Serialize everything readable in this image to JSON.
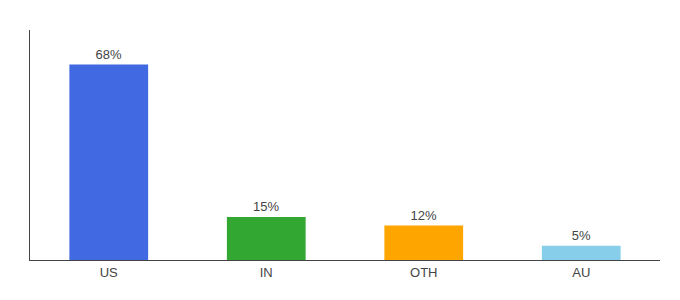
{
  "chart_data": {
    "type": "bar",
    "categories": [
      "US",
      "IN",
      "OTH",
      "AU"
    ],
    "values": [
      68,
      15,
      12,
      5
    ],
    "value_labels": [
      "68%",
      "15%",
      "12%",
      "5%"
    ],
    "colors": [
      "#4169E1",
      "#32A832",
      "#FFA500",
      "#87CEEB"
    ],
    "data_labels": true,
    "ylim": [
      0,
      80
    ],
    "yticks": [],
    "tick_labels": "x",
    "grid": false
  }
}
